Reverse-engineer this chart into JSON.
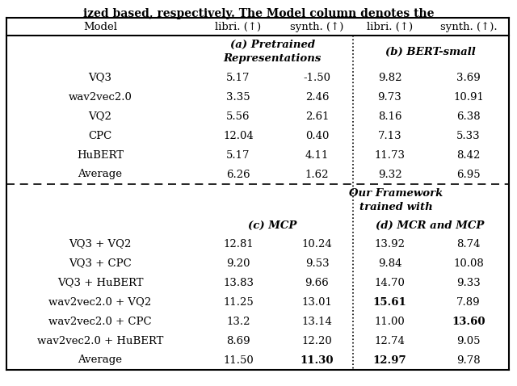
{
  "header_row": [
    "Model",
    "libri. (↑)",
    "synth. (↑)",
    "libri. (↑)",
    "synth. (↑)."
  ],
  "section_a_line1": "(a) Pretrained",
  "section_a_line2": "Representations",
  "section_b": "(b) BERT-small",
  "framework_line1": "Our Framework",
  "framework_line2": "trained with",
  "section_c": "(c) MCP",
  "section_d": "(d) MCR and MCP",
  "rows_top": [
    [
      "VQ3",
      "5.17",
      "-1.50",
      "9.82",
      "3.69"
    ],
    [
      "wav2vec2.0",
      "3.35",
      "2.46",
      "9.73",
      "10.91"
    ],
    [
      "VQ2",
      "5.56",
      "2.61",
      "8.16",
      "6.38"
    ],
    [
      "CPC",
      "12.04",
      "0.40",
      "7.13",
      "5.33"
    ],
    [
      "HuBERT",
      "5.17",
      "4.11",
      "11.73",
      "8.42"
    ],
    [
      "Average",
      "6.26",
      "1.62",
      "9.32",
      "6.95"
    ]
  ],
  "rows_bottom": [
    [
      "VQ3 + VQ2",
      "12.81",
      "10.24",
      "13.92",
      "8.74",
      false,
      false,
      false,
      false
    ],
    [
      "VQ3 + CPC",
      "9.20",
      "9.53",
      "9.84",
      "10.08",
      false,
      false,
      false,
      false
    ],
    [
      "VQ3 + HuBERT",
      "13.83",
      "9.66",
      "14.70",
      "9.33",
      false,
      false,
      false,
      false
    ],
    [
      "wav2vec2.0 + VQ2",
      "11.25",
      "13.01",
      "15.61",
      "7.89",
      false,
      false,
      true,
      false
    ],
    [
      "wav2vec2.0 + CPC",
      "13.2",
      "13.14",
      "11.00",
      "13.60",
      false,
      false,
      false,
      true
    ],
    [
      "wav2vec2.0 + HuBERT",
      "8.69",
      "12.20",
      "12.74",
      "9.05",
      false,
      false,
      false,
      false
    ],
    [
      "Average",
      "11.50",
      "11.30",
      "12.97",
      "9.78",
      false,
      true,
      true,
      false
    ]
  ],
  "title_text": "ized based, respectively. The Model column denotes the",
  "bg_color": "#ffffff",
  "text_color": "#000000",
  "line_color": "#000000"
}
